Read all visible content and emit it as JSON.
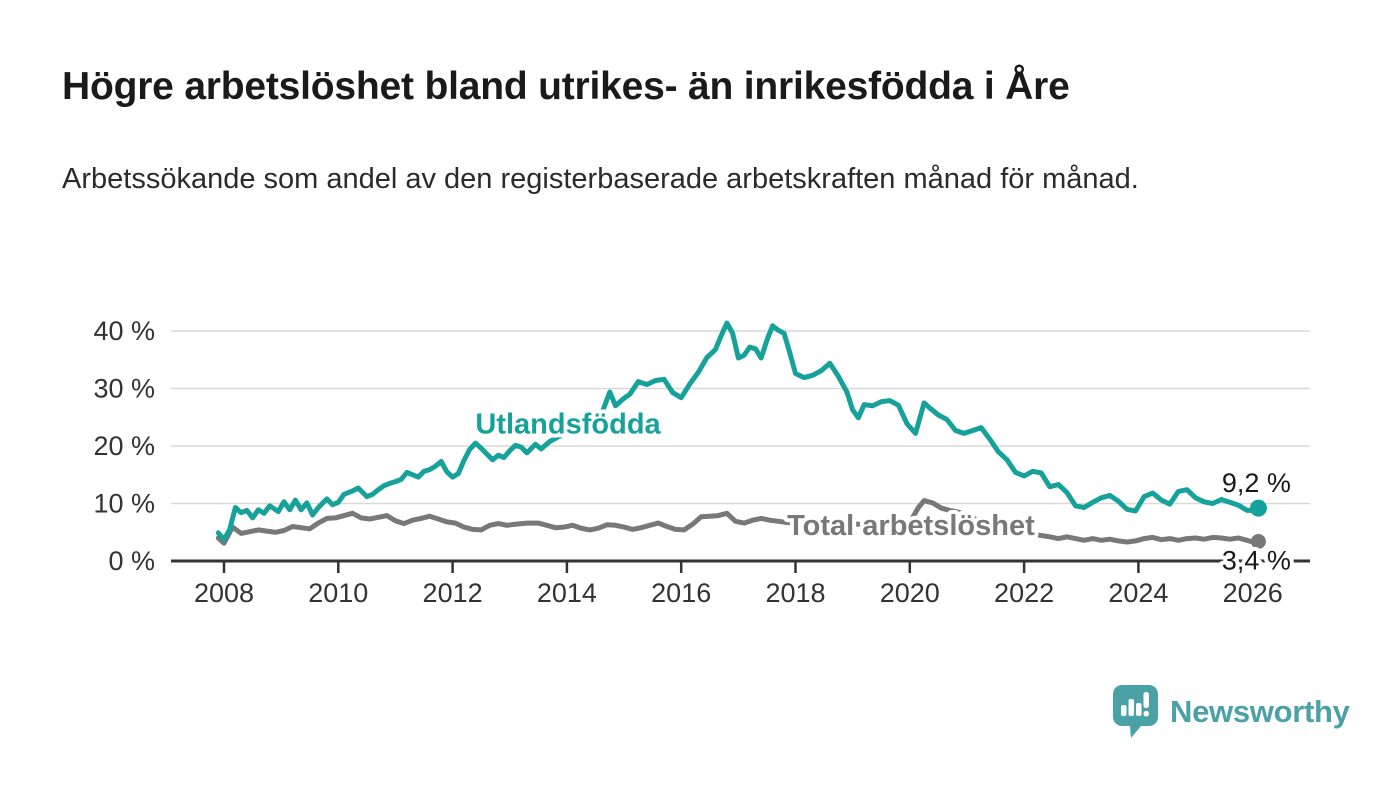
{
  "header": {
    "title": "Högre arbetslöshet bland utrikes- än inrikesfödda i Åre",
    "subtitle": "Arbetssökande som andel av den registerbaserade arbetskraften månad för månad."
  },
  "chart_data": {
    "type": "line",
    "title": "Högre arbetslöshet bland utrikes- än inrikesfödda i Åre",
    "subtitle": "Arbetssökande som andel av den registerbaserade arbetskraften månad för månad.",
    "xlabel": "",
    "ylabel": "",
    "xlim": [
      2007.9,
      2027.0
    ],
    "ylim": [
      0,
      43
    ],
    "grid": "horizontal-only",
    "legend_position": "inline-labels",
    "colors": {
      "gridline": "#d9d9d9",
      "axis": "#333333",
      "tick_text": "#333333",
      "value_label": "#1a1a1a"
    },
    "y_ticks": [
      {
        "value": 0,
        "label": "0 %"
      },
      {
        "value": 10,
        "label": "10 %"
      },
      {
        "value": 20,
        "label": "20 %"
      },
      {
        "value": 30,
        "label": "30 %"
      },
      {
        "value": 40,
        "label": "40 %"
      }
    ],
    "x_ticks": [
      {
        "value": 2008,
        "label": "2008"
      },
      {
        "value": 2010,
        "label": "2010"
      },
      {
        "value": 2012,
        "label": "2012"
      },
      {
        "value": 2014,
        "label": "2014"
      },
      {
        "value": 2016,
        "label": "2016"
      },
      {
        "value": 2018,
        "label": "2018"
      },
      {
        "value": 2020,
        "label": "2020"
      },
      {
        "value": 2022,
        "label": "2022"
      },
      {
        "value": 2024,
        "label": "2024"
      },
      {
        "value": 2026,
        "label": "2026"
      }
    ],
    "series": [
      {
        "name": "Total arbetslöshet",
        "color": "#787878",
        "line_width": 5,
        "label_pos": {
          "x": 2020.02,
          "y": 6.3
        },
        "end_label": "3,4 %",
        "end_value": 3.4,
        "end_label_dy": 28,
        "end_label_halo": true,
        "dot_radius": 7.5,
        "points": [
          [
            2007.9,
            4.0
          ],
          [
            2008.0,
            3.1
          ],
          [
            2008.15,
            5.9
          ],
          [
            2008.3,
            4.8
          ],
          [
            2008.45,
            5.1
          ],
          [
            2008.6,
            5.4
          ],
          [
            2008.75,
            5.2
          ],
          [
            2008.9,
            5.0
          ],
          [
            2009.05,
            5.3
          ],
          [
            2009.2,
            6.0
          ],
          [
            2009.35,
            5.8
          ],
          [
            2009.5,
            5.6
          ],
          [
            2009.65,
            6.6
          ],
          [
            2009.8,
            7.4
          ],
          [
            2009.95,
            7.5
          ],
          [
            2010.1,
            7.9
          ],
          [
            2010.25,
            8.3
          ],
          [
            2010.4,
            7.5
          ],
          [
            2010.55,
            7.3
          ],
          [
            2010.7,
            7.6
          ],
          [
            2010.85,
            7.9
          ],
          [
            2011.0,
            7.0
          ],
          [
            2011.15,
            6.5
          ],
          [
            2011.3,
            7.1
          ],
          [
            2011.45,
            7.4
          ],
          [
            2011.6,
            7.8
          ],
          [
            2011.75,
            7.3
          ],
          [
            2011.9,
            6.8
          ],
          [
            2012.05,
            6.6
          ],
          [
            2012.2,
            5.9
          ],
          [
            2012.35,
            5.5
          ],
          [
            2012.5,
            5.4
          ],
          [
            2012.65,
            6.2
          ],
          [
            2012.8,
            6.5
          ],
          [
            2012.95,
            6.2
          ],
          [
            2013.1,
            6.4
          ],
          [
            2013.3,
            6.6
          ],
          [
            2013.5,
            6.6
          ],
          [
            2013.65,
            6.2
          ],
          [
            2013.8,
            5.8
          ],
          [
            2013.95,
            5.9
          ],
          [
            2014.1,
            6.2
          ],
          [
            2014.25,
            5.7
          ],
          [
            2014.4,
            5.4
          ],
          [
            2014.55,
            5.7
          ],
          [
            2014.7,
            6.3
          ],
          [
            2014.85,
            6.2
          ],
          [
            2015.0,
            5.9
          ],
          [
            2015.15,
            5.5
          ],
          [
            2015.3,
            5.8
          ],
          [
            2015.45,
            6.2
          ],
          [
            2015.6,
            6.6
          ],
          [
            2015.75,
            6.0
          ],
          [
            2015.9,
            5.5
          ],
          [
            2016.05,
            5.4
          ],
          [
            2016.2,
            6.4
          ],
          [
            2016.35,
            7.7
          ],
          [
            2016.5,
            7.8
          ],
          [
            2016.65,
            7.9
          ],
          [
            2016.8,
            8.3
          ],
          [
            2016.95,
            6.9
          ],
          [
            2017.1,
            6.6
          ],
          [
            2017.25,
            7.1
          ],
          [
            2017.4,
            7.4
          ],
          [
            2017.55,
            7.1
          ],
          [
            2017.7,
            6.9
          ],
          [
            2017.85,
            6.7
          ],
          [
            2018.0,
            6.6
          ],
          [
            2018.2,
            6.4
          ],
          [
            2018.4,
            6.7
          ],
          [
            2018.6,
            6.5
          ],
          [
            2018.8,
            6.4
          ],
          [
            2019.0,
            6.5
          ],
          [
            2019.2,
            6.3
          ],
          [
            2019.4,
            6.5
          ],
          [
            2019.6,
            6.6
          ],
          [
            2019.8,
            6.3
          ],
          [
            2020.0,
            6.7
          ],
          [
            2020.15,
            9.3
          ],
          [
            2020.25,
            10.5
          ],
          [
            2020.4,
            10.1
          ],
          [
            2020.55,
            9.2
          ],
          [
            2020.7,
            8.8
          ],
          [
            2020.85,
            8.5
          ],
          [
            2021.0,
            7.9
          ],
          [
            2021.2,
            7.1
          ],
          [
            2021.4,
            6.4
          ],
          [
            2021.6,
            5.9
          ],
          [
            2021.8,
            5.4
          ],
          [
            2022.0,
            5.0
          ],
          [
            2022.2,
            4.6
          ],
          [
            2022.45,
            4.2
          ],
          [
            2022.6,
            3.9
          ],
          [
            2022.75,
            4.2
          ],
          [
            2022.9,
            3.9
          ],
          [
            2023.05,
            3.6
          ],
          [
            2023.2,
            3.9
          ],
          [
            2023.35,
            3.6
          ],
          [
            2023.5,
            3.8
          ],
          [
            2023.65,
            3.5
          ],
          [
            2023.8,
            3.3
          ],
          [
            2023.95,
            3.5
          ],
          [
            2024.1,
            3.9
          ],
          [
            2024.25,
            4.1
          ],
          [
            2024.4,
            3.7
          ],
          [
            2024.55,
            3.9
          ],
          [
            2024.7,
            3.6
          ],
          [
            2024.85,
            3.9
          ],
          [
            2025.0,
            4.0
          ],
          [
            2025.15,
            3.8
          ],
          [
            2025.3,
            4.1
          ],
          [
            2025.45,
            4.0
          ],
          [
            2025.6,
            3.8
          ],
          [
            2025.75,
            4.0
          ],
          [
            2025.9,
            3.6
          ],
          [
            2026.0,
            3.3
          ],
          [
            2026.1,
            3.4
          ]
        ]
      },
      {
        "name": "Utlandsfödda",
        "color": "#16a29a",
        "line_width": 5,
        "label_pos": {
          "x": 2014.02,
          "y": 23.9
        },
        "end_label": "9,2 %",
        "end_value": 9.2,
        "end_label_dy": -16,
        "end_label_halo": true,
        "dot_radius": 8.5,
        "points": [
          [
            2007.9,
            4.9
          ],
          [
            2008.0,
            3.7
          ],
          [
            2008.1,
            5.5
          ],
          [
            2008.2,
            9.3
          ],
          [
            2008.3,
            8.4
          ],
          [
            2008.4,
            8.8
          ],
          [
            2008.5,
            7.5
          ],
          [
            2008.6,
            8.9
          ],
          [
            2008.7,
            8.3
          ],
          [
            2008.8,
            9.6
          ],
          [
            2008.95,
            8.6
          ],
          [
            2009.05,
            10.3
          ],
          [
            2009.15,
            8.9
          ],
          [
            2009.25,
            10.6
          ],
          [
            2009.35,
            8.9
          ],
          [
            2009.45,
            10.1
          ],
          [
            2009.55,
            8.0
          ],
          [
            2009.65,
            9.3
          ],
          [
            2009.8,
            10.8
          ],
          [
            2009.9,
            9.8
          ],
          [
            2010.0,
            10.2
          ],
          [
            2010.1,
            11.6
          ],
          [
            2010.25,
            12.2
          ],
          [
            2010.35,
            12.7
          ],
          [
            2010.5,
            11.2
          ],
          [
            2010.6,
            11.6
          ],
          [
            2010.7,
            12.4
          ],
          [
            2010.8,
            13.1
          ],
          [
            2010.9,
            13.5
          ],
          [
            2011.0,
            13.8
          ],
          [
            2011.1,
            14.2
          ],
          [
            2011.2,
            15.4
          ],
          [
            2011.3,
            15.0
          ],
          [
            2011.4,
            14.6
          ],
          [
            2011.5,
            15.6
          ],
          [
            2011.6,
            15.9
          ],
          [
            2011.7,
            16.5
          ],
          [
            2011.8,
            17.3
          ],
          [
            2011.9,
            15.5
          ],
          [
            2012.0,
            14.6
          ],
          [
            2012.1,
            15.2
          ],
          [
            2012.2,
            17.5
          ],
          [
            2012.3,
            19.4
          ],
          [
            2012.4,
            20.5
          ],
          [
            2012.5,
            19.6
          ],
          [
            2012.6,
            18.6
          ],
          [
            2012.7,
            17.6
          ],
          [
            2012.8,
            18.4
          ],
          [
            2012.9,
            18.0
          ],
          [
            2013.0,
            19.2
          ],
          [
            2013.1,
            20.1
          ],
          [
            2013.2,
            19.8
          ],
          [
            2013.3,
            18.8
          ],
          [
            2013.45,
            20.3
          ],
          [
            2013.55,
            19.5
          ],
          [
            2013.7,
            20.8
          ],
          [
            2013.85,
            21.6
          ],
          [
            2014.0,
            22.2
          ],
          [
            2014.15,
            23.1
          ],
          [
            2014.3,
            22.9
          ],
          [
            2014.45,
            24.3
          ],
          [
            2014.6,
            25.4
          ],
          [
            2014.75,
            29.4
          ],
          [
            2014.85,
            27.0
          ],
          [
            2015.0,
            28.3
          ],
          [
            2015.1,
            29.0
          ],
          [
            2015.25,
            31.2
          ],
          [
            2015.4,
            30.7
          ],
          [
            2015.55,
            31.4
          ],
          [
            2015.7,
            31.6
          ],
          [
            2015.85,
            29.3
          ],
          [
            2016.0,
            28.4
          ],
          [
            2016.15,
            30.8
          ],
          [
            2016.3,
            32.8
          ],
          [
            2016.45,
            35.4
          ],
          [
            2016.6,
            36.8
          ],
          [
            2016.7,
            39.2
          ],
          [
            2016.8,
            41.4
          ],
          [
            2016.9,
            39.6
          ],
          [
            2017.0,
            35.3
          ],
          [
            2017.1,
            35.8
          ],
          [
            2017.2,
            37.2
          ],
          [
            2017.3,
            36.9
          ],
          [
            2017.4,
            35.3
          ],
          [
            2017.5,
            38.4
          ],
          [
            2017.6,
            40.9
          ],
          [
            2017.7,
            40.1
          ],
          [
            2017.8,
            39.6
          ],
          [
            2017.9,
            36.2
          ],
          [
            2018.0,
            32.6
          ],
          [
            2018.15,
            31.9
          ],
          [
            2018.3,
            32.3
          ],
          [
            2018.45,
            33.1
          ],
          [
            2018.6,
            34.4
          ],
          [
            2018.75,
            32.1
          ],
          [
            2018.9,
            29.4
          ],
          [
            2019.0,
            26.3
          ],
          [
            2019.1,
            24.9
          ],
          [
            2019.2,
            27.2
          ],
          [
            2019.35,
            27.0
          ],
          [
            2019.5,
            27.7
          ],
          [
            2019.65,
            27.9
          ],
          [
            2019.8,
            27.1
          ],
          [
            2019.95,
            23.9
          ],
          [
            2020.1,
            22.2
          ],
          [
            2020.25,
            27.5
          ],
          [
            2020.35,
            26.6
          ],
          [
            2020.5,
            25.4
          ],
          [
            2020.65,
            24.6
          ],
          [
            2020.8,
            22.7
          ],
          [
            2020.95,
            22.2
          ],
          [
            2021.1,
            22.7
          ],
          [
            2021.25,
            23.2
          ],
          [
            2021.4,
            21.2
          ],
          [
            2021.55,
            19.0
          ],
          [
            2021.7,
            17.6
          ],
          [
            2021.85,
            15.4
          ],
          [
            2022.0,
            14.8
          ],
          [
            2022.15,
            15.6
          ],
          [
            2022.3,
            15.3
          ],
          [
            2022.45,
            12.9
          ],
          [
            2022.6,
            13.3
          ],
          [
            2022.75,
            11.9
          ],
          [
            2022.9,
            9.6
          ],
          [
            2023.05,
            9.3
          ],
          [
            2023.2,
            10.2
          ],
          [
            2023.35,
            11.0
          ],
          [
            2023.5,
            11.4
          ],
          [
            2023.65,
            10.4
          ],
          [
            2023.8,
            9.0
          ],
          [
            2023.95,
            8.7
          ],
          [
            2024.1,
            11.2
          ],
          [
            2024.25,
            11.8
          ],
          [
            2024.4,
            10.6
          ],
          [
            2024.55,
            9.9
          ],
          [
            2024.7,
            12.1
          ],
          [
            2024.85,
            12.4
          ],
          [
            2025.0,
            11.0
          ],
          [
            2025.15,
            10.3
          ],
          [
            2025.3,
            10.0
          ],
          [
            2025.45,
            10.7
          ],
          [
            2025.6,
            10.2
          ],
          [
            2025.75,
            9.7
          ],
          [
            2025.9,
            8.8
          ],
          [
            2026.0,
            8.8
          ],
          [
            2026.1,
            9.2
          ]
        ]
      }
    ]
  },
  "footer": {
    "brand": "Newsworthy",
    "brand_color": "#4aa1a6"
  }
}
